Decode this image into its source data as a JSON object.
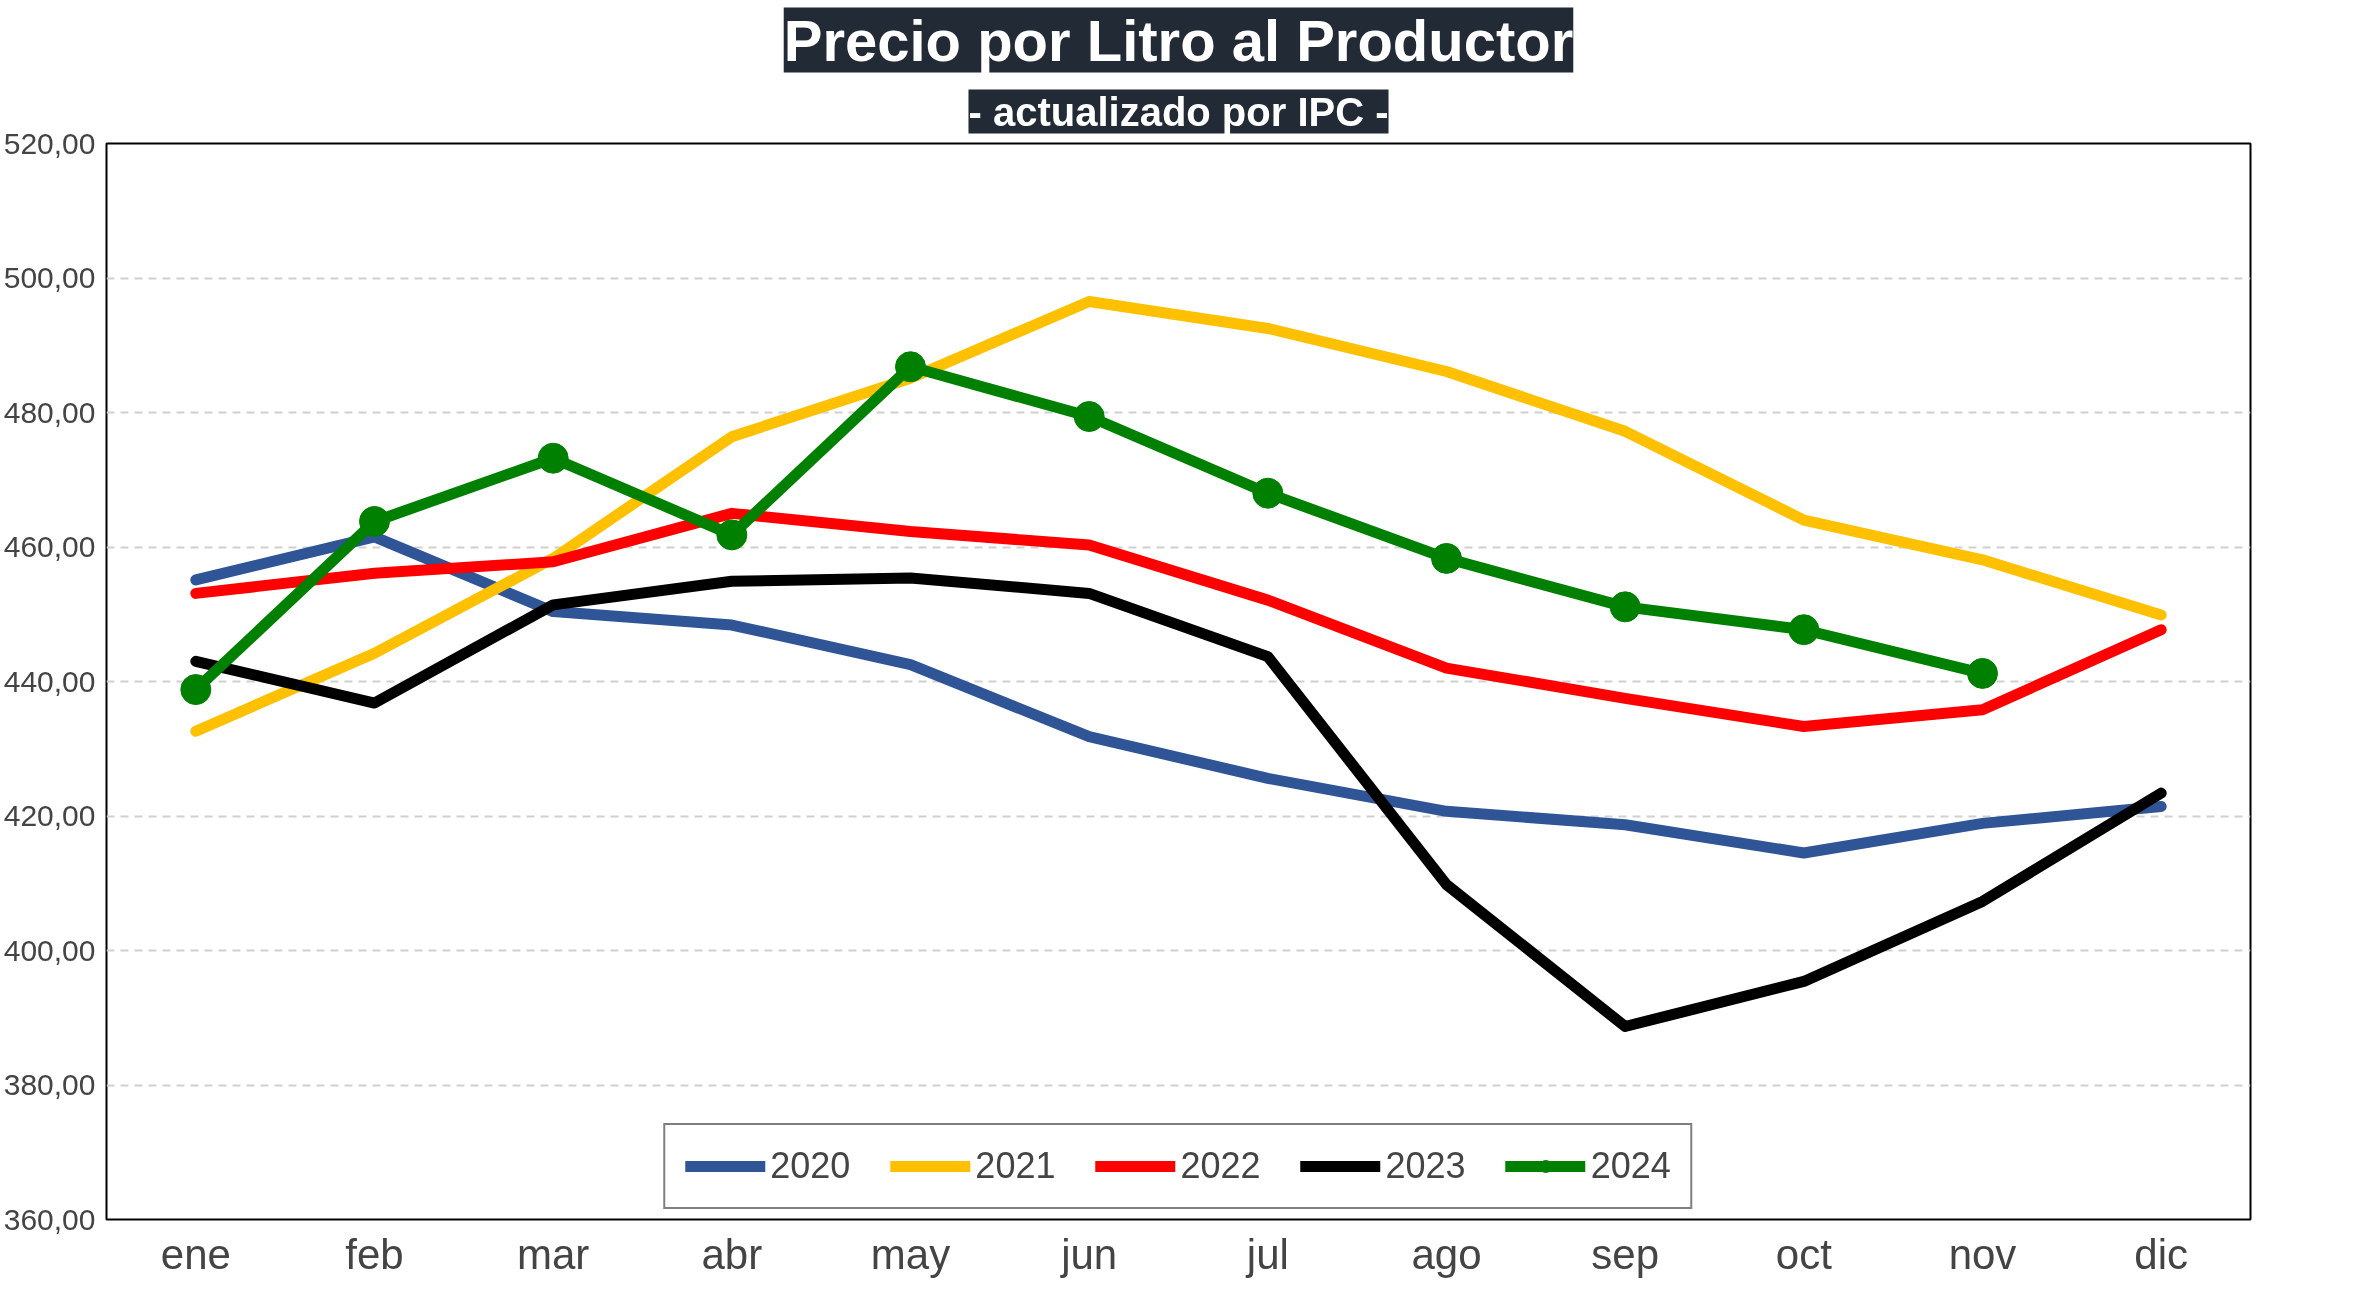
{
  "chart_data": {
    "type": "line",
    "title": "Precio por Litro al Productor",
    "subtitle": "- actualizado por IPC -",
    "categories": [
      "ene",
      "feb",
      "mar",
      "abr",
      "may",
      "jun",
      "jul",
      "ago",
      "sep",
      "oct",
      "nov",
      "dic"
    ],
    "ylim": [
      360,
      520
    ],
    "yticks": [
      {
        "value": 360,
        "label": "360,00"
      },
      {
        "value": 380,
        "label": "380,00"
      },
      {
        "value": 400,
        "label": "400,00"
      },
      {
        "value": 420,
        "label": "420,00"
      },
      {
        "value": 440,
        "label": "440,00"
      },
      {
        "value": 460,
        "label": "460,00"
      },
      {
        "value": 480,
        "label": "480,00"
      },
      {
        "value": 500,
        "label": "500,00"
      },
      {
        "value": 520,
        "label": "520,00"
      }
    ],
    "grid": "y",
    "legend": "bottom",
    "line_style": "solid",
    "series": [
      {
        "name": "2020",
        "color": "#2f5597",
        "marker": "none",
        "values": [
          455.1,
          461.5,
          450.4,
          448.4,
          442.5,
          431.8,
          425.6,
          420.7,
          418.7,
          414.5,
          418.9,
          421.4
        ]
      },
      {
        "name": "2021",
        "color": "#ffc000",
        "marker": "none",
        "values": [
          432.6,
          444.2,
          458.3,
          476.4,
          485.1,
          496.5,
          492.5,
          486.1,
          477.2,
          464.0,
          458.1,
          449.9
        ]
      },
      {
        "name": "2022",
        "color": "#ff0000",
        "marker": "none",
        "values": [
          453.1,
          456.1,
          457.8,
          465.0,
          462.3,
          460.3,
          452.1,
          442.0,
          437.5,
          433.3,
          435.8,
          447.7
        ]
      },
      {
        "name": "2023",
        "color": "#000000",
        "marker": "none",
        "values": [
          443.0,
          436.8,
          451.4,
          454.9,
          455.4,
          453.1,
          443.7,
          409.8,
          388.7,
          395.4,
          407.3,
          423.4
        ]
      },
      {
        "name": "2024",
        "color": "#008000",
        "marker": "circle",
        "values": [
          438.8,
          463.8,
          473.2,
          461.8,
          486.8,
          479.4,
          468.0,
          458.3,
          451.1,
          447.7,
          441.2,
          null
        ]
      }
    ]
  }
}
